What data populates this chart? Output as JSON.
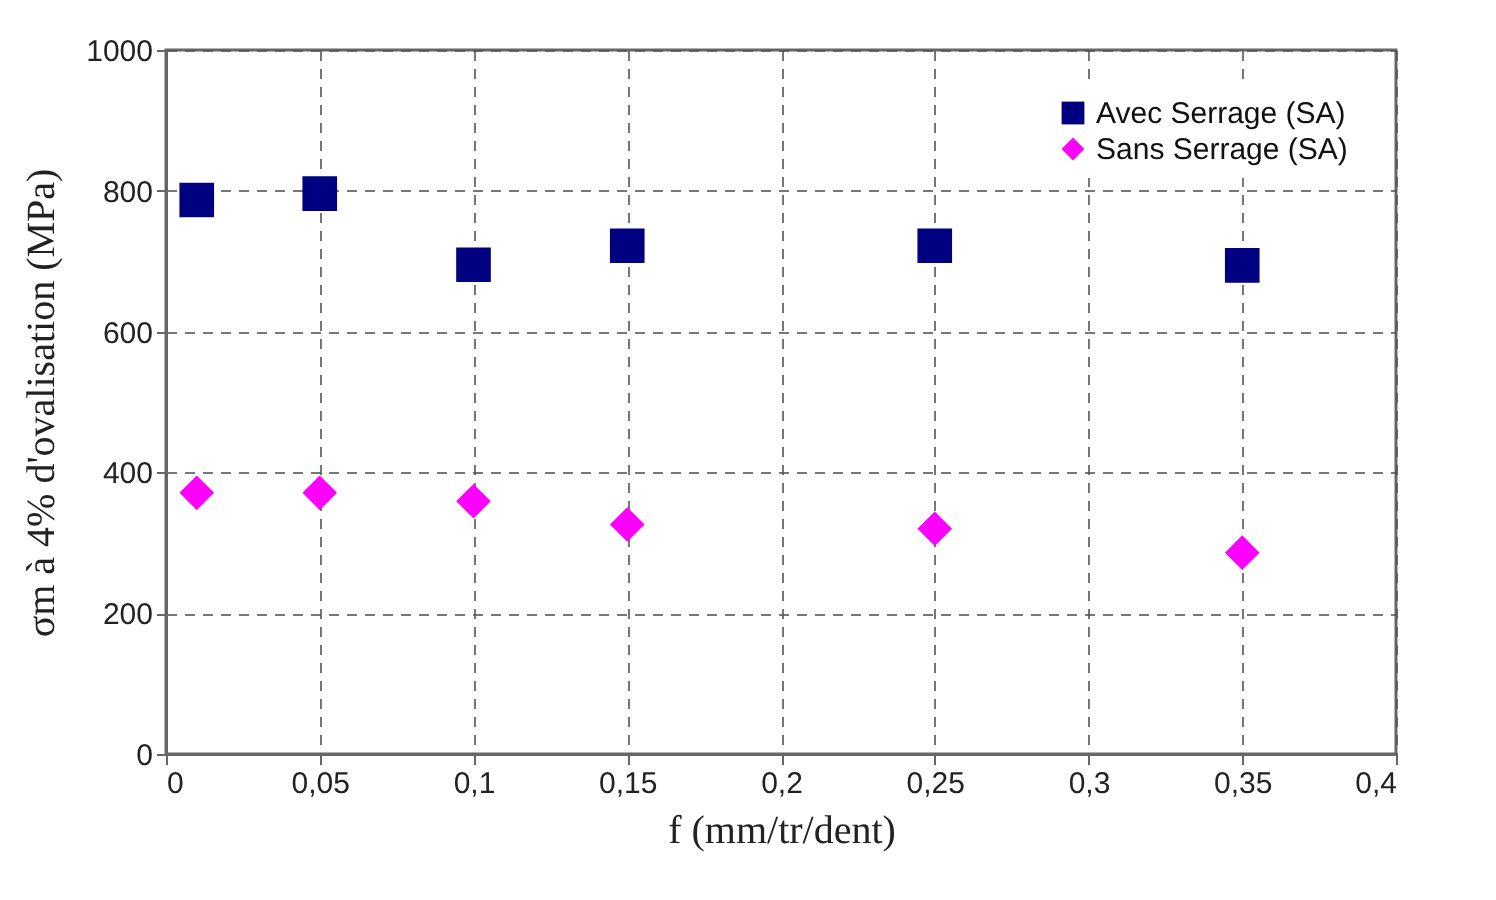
{
  "chart_data": {
    "type": "scatter",
    "xlabel": "f (mm/tr/dent)",
    "ylabel": "σm à 4% d'ovalisation  (MPa)",
    "x": [
      0.01,
      0.05,
      0.1,
      0.15,
      0.25,
      0.35
    ],
    "series": [
      {
        "name": "Avec Serrage (SA)",
        "color": "#000080",
        "marker": "square",
        "values": [
          787,
          796,
          695,
          722,
          722,
          694
        ]
      },
      {
        "name": "Sans Serrage (SA)",
        "color": "#ff00ff",
        "marker": "diamond",
        "values": [
          371,
          371,
          359,
          326,
          320,
          286
        ]
      }
    ],
    "xlim": [
      0,
      0.4
    ],
    "xticks": [
      0,
      {
        "value": 0.05,
        "label": "0,05"
      },
      {
        "value": 0.1,
        "label": "0,1"
      },
      {
        "value": 0.15,
        "label": "0,15"
      },
      {
        "value": 0.2,
        "label": "0,2"
      },
      {
        "value": 0.25,
        "label": "0,25"
      },
      {
        "value": 0.3,
        "label": "0,3"
      },
      {
        "value": 0.35,
        "label": "0,35"
      },
      {
        "value": 0.4,
        "label": "0,4"
      }
    ],
    "ylim": [
      0,
      1000
    ],
    "yticks": [
      0,
      200,
      400,
      600,
      800,
      1000
    ],
    "grid": true,
    "legend": "top right"
  }
}
